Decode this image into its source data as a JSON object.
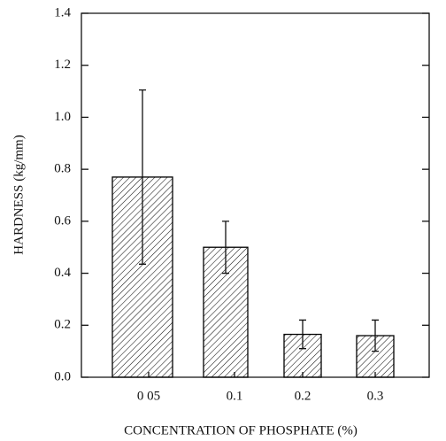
{
  "chart_data": {
    "type": "bar",
    "x_label": "CONCENTRATION OF PHOSPHATE (%)",
    "y_label": "HARDNESS (kg/mm)",
    "categories": [
      "0 05",
      "0.1",
      "0.2",
      "0.3"
    ],
    "values": [
      0.77,
      0.5,
      0.165,
      0.16
    ],
    "errors": [
      0.335,
      0.1,
      0.055,
      0.06
    ],
    "color": "#000000",
    "ylim": [
      0,
      1.4
    ],
    "yticks": [
      {
        "value": 0,
        "label": "0.0"
      },
      0.2,
      0.4,
      0.6,
      0.8,
      {
        "value": 1,
        "label": "1.0"
      },
      1.2,
      1.4
    ]
  }
}
